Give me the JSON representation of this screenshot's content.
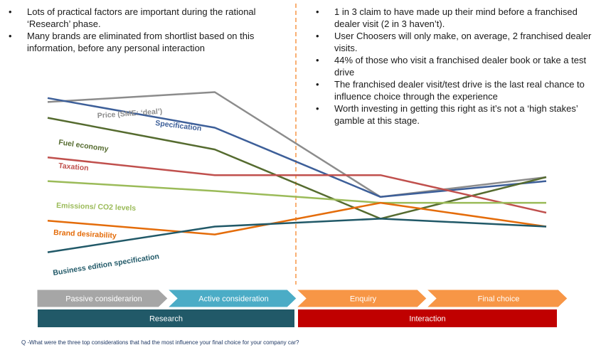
{
  "bullets_left": [
    "Lots of practical factors are important during the rational ‘Research’ phase.",
    "Many brands are eliminated from shortlist based on this information, before any personal interaction"
  ],
  "bullets_right": [
    "1 in 3 claim to have made up their mind before a franchised dealer visit  (2 in 3 haven’t).",
    "User Choosers will only make, on average, 2 franchised dealer visits.",
    "44% of those who visit a franchised dealer book or take a test drive",
    "The franchised dealer visit/test drive is the last real chance to influence choice through the experience",
    "Worth investing in getting this right as it’s not a ‘high stakes’ gamble at this stage."
  ],
  "chart_data": {
    "type": "line",
    "x": [
      "Passive consideration",
      "Active consideration",
      "Enquiry",
      "Final choice"
    ],
    "ylim": [
      0,
      100
    ],
    "series": [
      {
        "name": "Price (SME: ‘deal’)",
        "color": "#8c8c8c",
        "values": [
          88,
          93,
          40,
          50
        ]
      },
      {
        "name": "Specification",
        "color": "#3d5f99",
        "values": [
          90,
          75,
          40,
          48
        ]
      },
      {
        "name": "Fuel economy",
        "color": "#556b2f",
        "values": [
          80,
          64,
          29,
          50
        ]
      },
      {
        "name": "Taxation",
        "color": "#c0504d",
        "values": [
          60,
          51,
          51,
          32
        ]
      },
      {
        "name": "Emissions/ CO2 levels",
        "color": "#9bbb59",
        "values": [
          48,
          43,
          37,
          37
        ]
      },
      {
        "name": "Brand desirability",
        "color": "#e46c0a",
        "values": [
          28,
          21,
          37,
          25
        ]
      },
      {
        "name": "Business edition specification",
        "color": "#215968",
        "values": [
          12,
          25,
          29,
          25
        ]
      }
    ]
  },
  "stages": [
    {
      "label": "Passive considerarion",
      "color": "#a6a6a6"
    },
    {
      "label": "Active consideration",
      "color": "#4bacc6"
    },
    {
      "label": "Enquiry",
      "color": "#f79646"
    },
    {
      "label": "Final choice",
      "color": "#f79646"
    }
  ],
  "phases": [
    {
      "label": "Research",
      "color": "#215968"
    },
    {
      "label": "Interaction",
      "color": "#c00000"
    }
  ],
  "footnote": "Q -What were the three top considerations that had the most influence your final choice for your company car?"
}
